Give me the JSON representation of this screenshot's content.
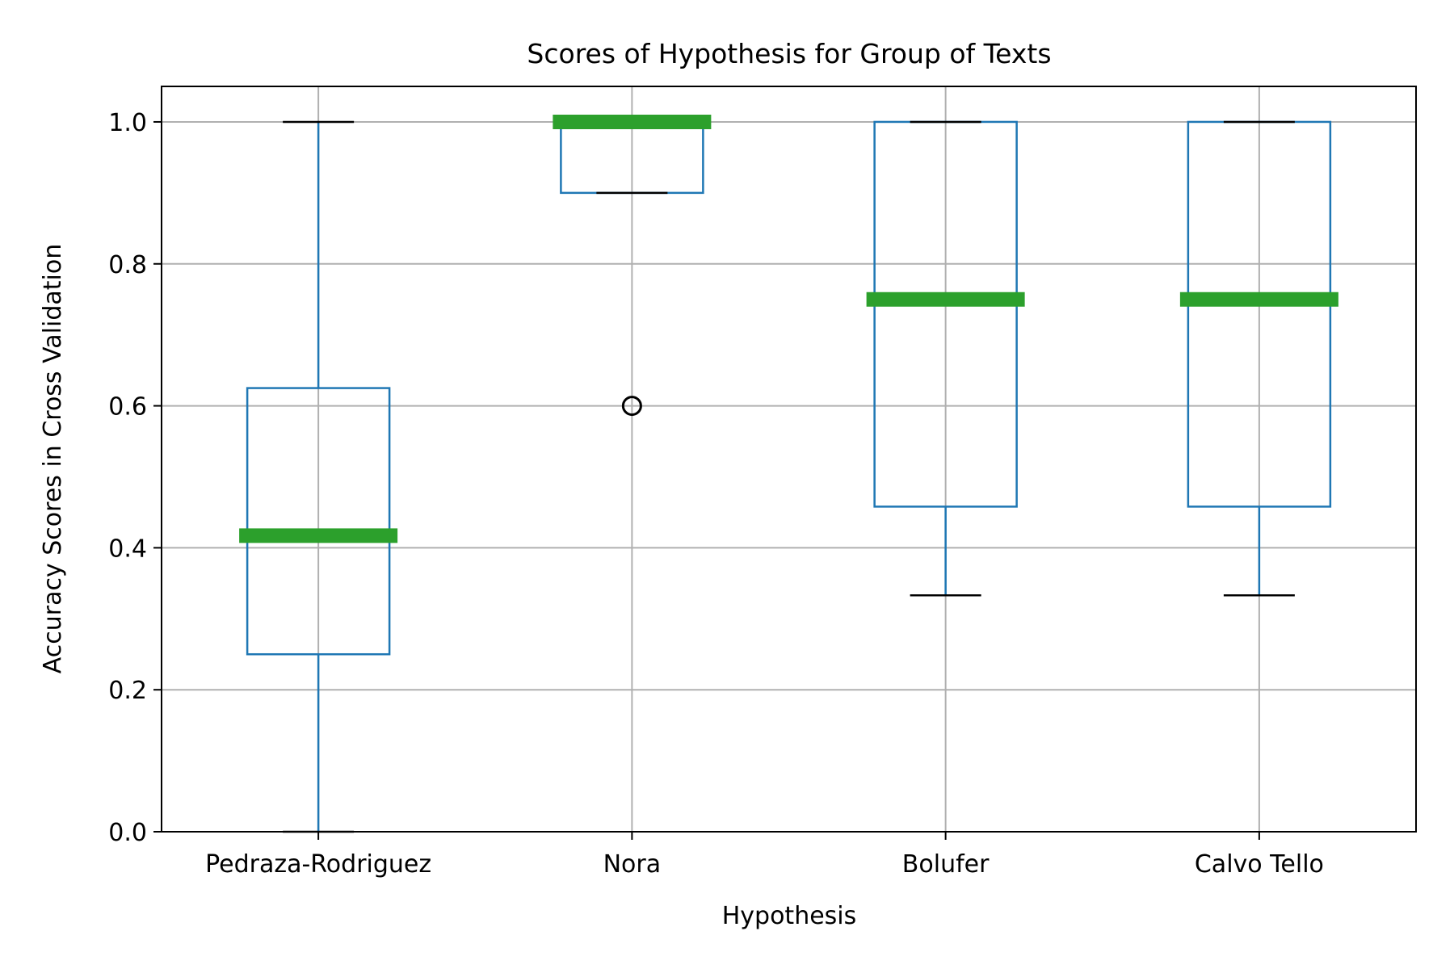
{
  "chart_data": {
    "type": "box",
    "title": "Scores of Hypothesis for Group of Texts",
    "xlabel": "Hypothesis",
    "ylabel": "Accuracy Scores in Cross Validation",
    "ylim": [
      0,
      1.05
    ],
    "yticks": [
      0.0,
      0.2,
      0.4,
      0.6,
      0.8,
      1.0
    ],
    "ytick_labels": [
      "0.0",
      "0.2",
      "0.4",
      "0.6",
      "0.8",
      "1.0"
    ],
    "grid": true,
    "categories": [
      "Pedraza-Rodriguez",
      "Nora",
      "Bolufer",
      "Calvo Tello"
    ],
    "boxes": [
      {
        "whisker_low": 0.0,
        "q1": 0.25,
        "median": 0.417,
        "q3": 0.625,
        "whisker_high": 1.0,
        "outliers": []
      },
      {
        "whisker_low": 0.9,
        "q1": 0.9,
        "median": 1.0,
        "q3": 1.0,
        "whisker_high": 1.0,
        "outliers": [
          0.6
        ]
      },
      {
        "whisker_low": 0.333,
        "q1": 0.458,
        "median": 0.75,
        "q3": 1.0,
        "whisker_high": 1.0,
        "outliers": []
      },
      {
        "whisker_low": 0.333,
        "q1": 0.458,
        "median": 0.75,
        "q3": 1.0,
        "whisker_high": 1.0,
        "outliers": []
      }
    ],
    "colors": {
      "box": "#1f77b4",
      "median": "#2ca02c",
      "cap": "#000000",
      "grid": "#b0b0b0"
    }
  }
}
